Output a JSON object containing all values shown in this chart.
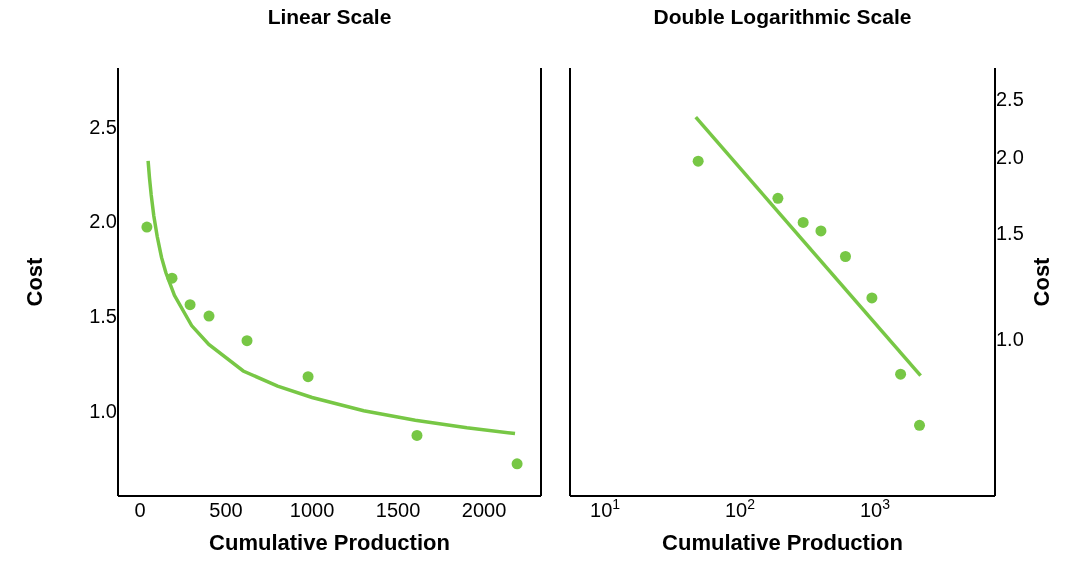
{
  "chart_data": [
    {
      "type": "scatter",
      "title": "Linear Scale",
      "xlabel": "Cumulative Production",
      "ylabel": "Cost",
      "legend": false,
      "xlim": [
        -128,
        2331
      ],
      "xticks": [
        0,
        500,
        1000,
        1500,
        2000
      ],
      "ylim": [
        0.55,
        2.81
      ],
      "yticks": [
        {
          "value": 1,
          "label": "1.0"
        },
        {
          "value": 1.5,
          "label": "1.5"
        },
        {
          "value": 2,
          "label": "2.0"
        },
        {
          "value": 2.5,
          "label": "2.5"
        }
      ],
      "series": [
        {
          "type": "scatter",
          "marker": "circle",
          "color": "#77c745",
          "x": [
            40,
            186,
            291,
            401,
            622,
            977,
            1610,
            2192
          ],
          "values": [
            1.97,
            1.7,
            1.56,
            1.5,
            1.37,
            1.18,
            0.87,
            0.72
          ]
        },
        {
          "type": "line",
          "marker": "none",
          "color": "#77c745",
          "line_style": "solid",
          "x": [
            47,
            55,
            65,
            80,
            100,
            125,
            150,
            200,
            300,
            400,
            600,
            800,
            1000,
            1300,
            1600,
            1900,
            2180
          ],
          "values": [
            2.32,
            2.23,
            2.14,
            2.03,
            1.92,
            1.81,
            1.73,
            1.61,
            1.45,
            1.35,
            1.21,
            1.13,
            1.07,
            1.0,
            0.95,
            0.91,
            0.88
          ]
        }
      ]
    },
    {
      "type": "scatter",
      "title": "Double Logarithmic Scale",
      "xlabel": "Cumulative Production",
      "ylabel": "Cost",
      "legend": false,
      "log": "xy",
      "xlim": [
        5.5,
        7760
      ],
      "xticks": [
        {
          "value": 10,
          "label": "10$^{1}$"
        },
        {
          "value": 100,
          "label": "10$^{2}$"
        },
        {
          "value": 1000,
          "label": "10$^{3}$"
        }
      ],
      "ylim": [
        0.55,
        2.81
      ],
      "yticks": [
        {
          "value": 1,
          "label": "1.0"
        },
        {
          "value": 1.5,
          "label": "1.5"
        },
        {
          "value": 2,
          "label": "2.0"
        },
        {
          "value": 2.5,
          "label": "2.5"
        }
      ],
      "series": [
        {
          "type": "scatter",
          "marker": "circle",
          "color": "#77c745",
          "x": [
            49,
            191,
            294,
            398,
            605,
            950,
            1550,
            2140
          ],
          "values": [
            1.97,
            1.71,
            1.56,
            1.51,
            1.37,
            1.17,
            0.875,
            0.72
          ]
        },
        {
          "type": "line",
          "marker": "none",
          "color": "#77c745",
          "line_style": "solid",
          "x": [
            47,
            2180
          ],
          "values": [
            2.33,
            0.87
          ]
        }
      ]
    }
  ]
}
